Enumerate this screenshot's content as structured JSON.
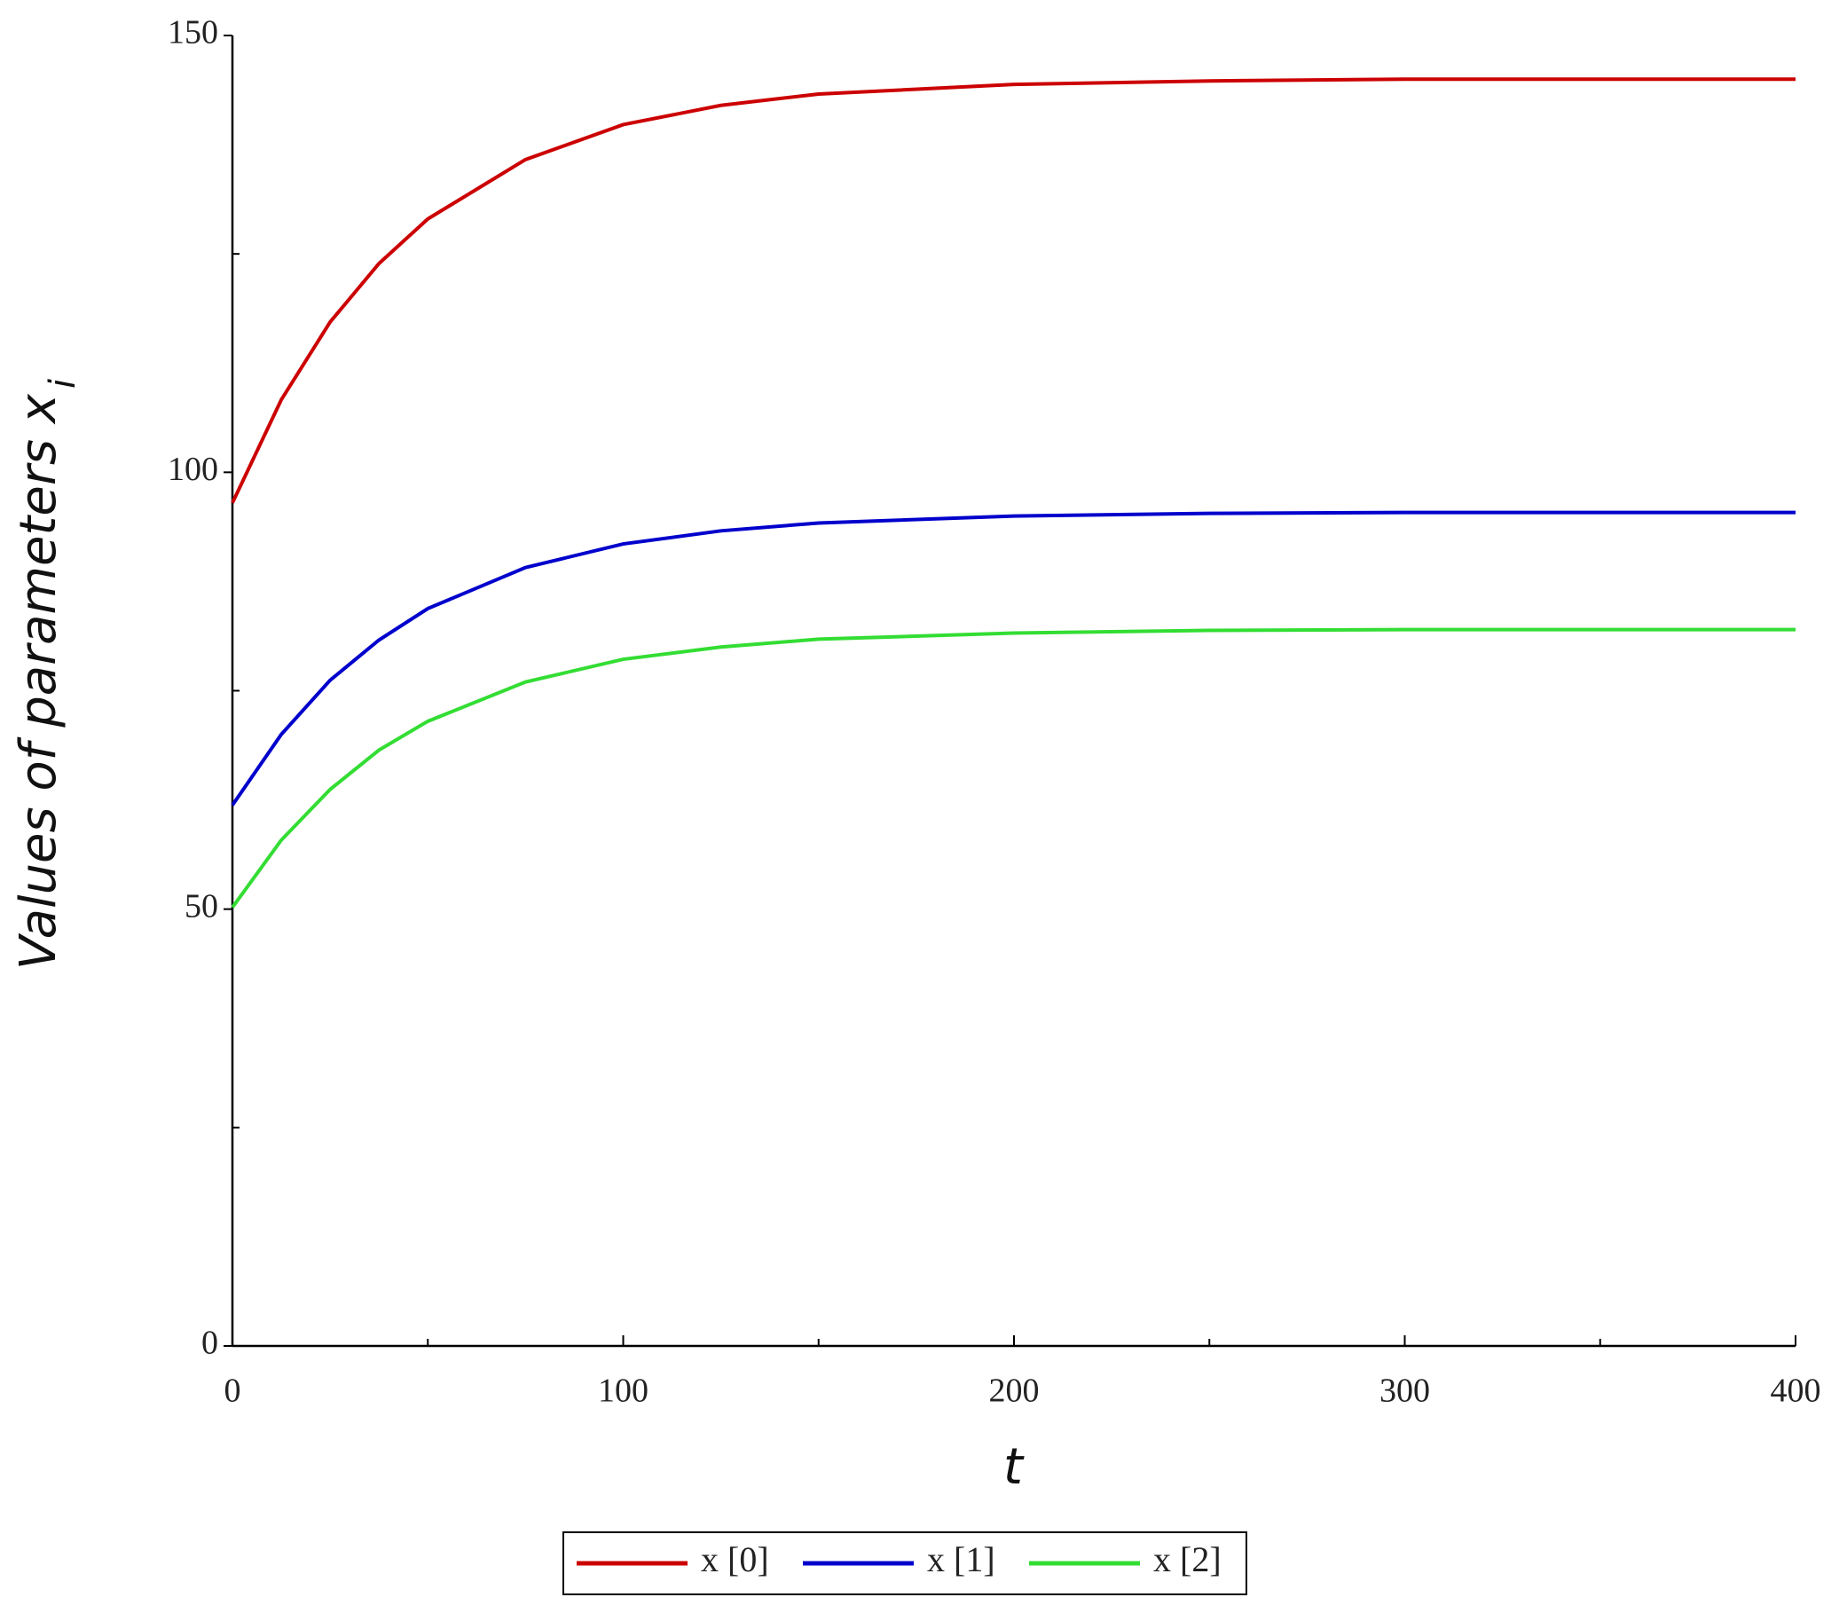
{
  "chart_data": {
    "type": "line",
    "xlabel": "t",
    "ylabel": "Values of parameters x",
    "ylabel_subscript": "i",
    "x": [
      0,
      12.5,
      25,
      37.5,
      50,
      75,
      100,
      125,
      150,
      200,
      250,
      300,
      350,
      400
    ],
    "series": [
      {
        "name": "x [0]",
        "color": "#cc0000",
        "values": [
          96.5,
          108.3,
          117.2,
          123.9,
          129.0,
          135.8,
          139.8,
          142.0,
          143.3,
          144.4,
          144.8,
          145,
          145,
          145
        ]
      },
      {
        "name": "x [1]",
        "color": "#0000cc",
        "values": [
          61.9,
          70.0,
          76.2,
          80.8,
          84.4,
          89.1,
          91.8,
          93.3,
          94.2,
          95.0,
          95.3,
          95.4,
          95.4,
          95.4
        ]
      },
      {
        "name": "x [2]",
        "color": "#33dd33",
        "values": [
          50.2,
          57.9,
          63.7,
          68.2,
          71.5,
          76.0,
          78.6,
          80.0,
          80.9,
          81.6,
          81.9,
          82,
          82,
          82
        ]
      }
    ],
    "xlim": [
      0,
      400
    ],
    "ylim": [
      0,
      150
    ],
    "xticks": [
      0,
      100,
      200,
      300,
      400
    ],
    "yticks": [
      0,
      50,
      100,
      150
    ],
    "xminorticks": [
      50,
      150,
      250,
      350
    ],
    "yminorticks": [
      25,
      75,
      125
    ],
    "grid": false,
    "legend": "bottom"
  }
}
